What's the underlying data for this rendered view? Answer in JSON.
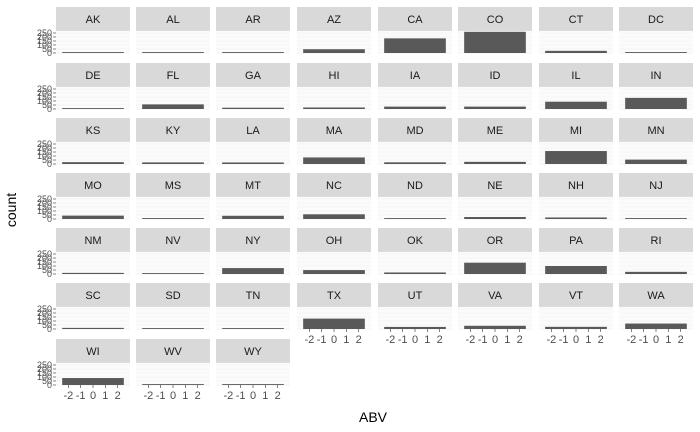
{
  "chart_data": {
    "type": "bar",
    "chart_kind": "faceted-histogram",
    "xlabel": "ABV",
    "ylabel": "count",
    "xlim": [
      -3,
      3
    ],
    "ylim": [
      0,
      275
    ],
    "x_ticks": [
      "-2",
      "-1",
      "0",
      "1",
      "2"
    ],
    "y_ticks": [
      "0",
      "50",
      "100",
      "150",
      "200",
      "250"
    ],
    "bar_color": "#595959",
    "strip_color": "#d9d9d9",
    "panel_color": "#ffffff",
    "grid_color": "#ebebeb",
    "ncol": 8,
    "facets": [
      {
        "state": "AK",
        "count": 7
      },
      {
        "state": "AL",
        "count": 3
      },
      {
        "state": "AR",
        "count": 2
      },
      {
        "state": "AZ",
        "count": 47
      },
      {
        "state": "CA",
        "count": 183
      },
      {
        "state": "CO",
        "count": 265
      },
      {
        "state": "CT",
        "count": 27
      },
      {
        "state": "DC",
        "count": 8
      },
      {
        "state": "DE",
        "count": 2
      },
      {
        "state": "FL",
        "count": 58
      },
      {
        "state": "GA",
        "count": 16
      },
      {
        "state": "HI",
        "count": 19
      },
      {
        "state": "IA",
        "count": 30
      },
      {
        "state": "ID",
        "count": 30
      },
      {
        "state": "IL",
        "count": 91
      },
      {
        "state": "IN",
        "count": 139
      },
      {
        "state": "KS",
        "count": 23
      },
      {
        "state": "KY",
        "count": 20
      },
      {
        "state": "LA",
        "count": 19
      },
      {
        "state": "MA",
        "count": 82
      },
      {
        "state": "MD",
        "count": 21
      },
      {
        "state": "ME",
        "count": 27
      },
      {
        "state": "MI",
        "count": 162
      },
      {
        "state": "MN",
        "count": 55
      },
      {
        "state": "MO",
        "count": 42
      },
      {
        "state": "MS",
        "count": 11
      },
      {
        "state": "MT",
        "count": 40
      },
      {
        "state": "NC",
        "count": 59
      },
      {
        "state": "ND",
        "count": 3
      },
      {
        "state": "NE",
        "count": 25
      },
      {
        "state": "NH",
        "count": 19
      },
      {
        "state": "NJ",
        "count": 8
      },
      {
        "state": "NM",
        "count": 14
      },
      {
        "state": "NV",
        "count": 11
      },
      {
        "state": "NY",
        "count": 74
      },
      {
        "state": "OH",
        "count": 49
      },
      {
        "state": "OK",
        "count": 19
      },
      {
        "state": "OR",
        "count": 141
      },
      {
        "state": "PA",
        "count": 100
      },
      {
        "state": "RI",
        "count": 27
      },
      {
        "state": "SC",
        "count": 14
      },
      {
        "state": "SD",
        "count": 7
      },
      {
        "state": "TN",
        "count": 3
      },
      {
        "state": "TX",
        "count": 130
      },
      {
        "state": "UT",
        "count": 26
      },
      {
        "state": "VA",
        "count": 40
      },
      {
        "state": "VT",
        "count": 27
      },
      {
        "state": "WA",
        "count": 68
      },
      {
        "state": "WI",
        "count": 87
      },
      {
        "state": "WV",
        "count": 2
      },
      {
        "state": "WY",
        "count": 4
      }
    ]
  }
}
